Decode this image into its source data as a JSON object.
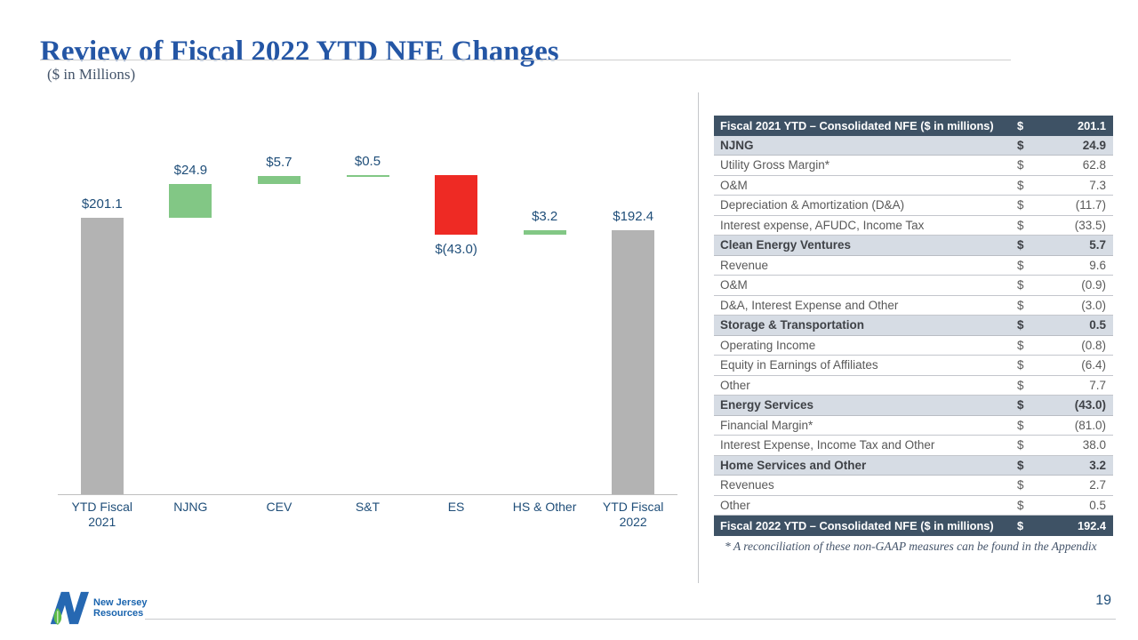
{
  "slide": {
    "title": "Review of Fiscal 2022 YTD NFE Changes",
    "subtitle": "($ in Millions)",
    "page_number": "19",
    "footnote": "* A reconciliation of these non-GAAP measures can be found in the Appendix",
    "logo": {
      "line1": "New Jersey",
      "line2": "Resources"
    }
  },
  "chart_data": {
    "type": "bar",
    "subtype": "waterfall",
    "categories": [
      "YTD Fiscal 2021",
      "NJNG",
      "CEV",
      "S&T",
      "ES",
      "HS & Other",
      "YTD Fiscal 2022"
    ],
    "steps": [
      {
        "category": "YTD Fiscal 2021",
        "value": 201.1,
        "kind": "total",
        "label": "$201.1"
      },
      {
        "category": "NJNG",
        "value": 24.9,
        "kind": "increase",
        "label": "$24.9"
      },
      {
        "category": "CEV",
        "value": 5.7,
        "kind": "increase",
        "label": "$5.7"
      },
      {
        "category": "S&T",
        "value": 0.5,
        "kind": "increase",
        "label": "$0.5"
      },
      {
        "category": "ES",
        "value": -43.0,
        "kind": "decrease",
        "label": "$(43.0)"
      },
      {
        "category": "HS & Other",
        "value": 3.2,
        "kind": "increase",
        "label": "$3.2"
      },
      {
        "category": "YTD Fiscal 2022",
        "value": 192.4,
        "kind": "total",
        "label": "$192.4"
      }
    ],
    "ylim": [
      0,
      235
    ],
    "grid": false,
    "legend": "none",
    "colors": {
      "total": "#B3B3B3",
      "increase": "#82C785",
      "decrease": "#EE2A24",
      "label": "#1F4E79",
      "axis": "#BFBFBF"
    }
  },
  "table": {
    "rows": [
      {
        "style": "header",
        "label": "Fiscal 2021 YTD – Consolidated NFE ($ in millions)",
        "currency": "$",
        "value": "201.1"
      },
      {
        "style": "section",
        "label": "NJNG",
        "currency": "$",
        "value": "24.9"
      },
      {
        "style": "item",
        "label": "Utility Gross Margin*",
        "currency": "$",
        "value": "62.8"
      },
      {
        "style": "item",
        "label": "O&M",
        "currency": "$",
        "value": "7.3"
      },
      {
        "style": "item",
        "label": "Depreciation & Amortization (D&A)",
        "currency": "$",
        "value": "(11.7)"
      },
      {
        "style": "item",
        "label": "Interest expense, AFUDC, Income Tax",
        "currency": "$",
        "value": "(33.5)"
      },
      {
        "style": "section",
        "label": "Clean Energy Ventures",
        "currency": "$",
        "value": "5.7"
      },
      {
        "style": "item",
        "label": "Revenue",
        "currency": "$",
        "value": "9.6"
      },
      {
        "style": "item",
        "label": "O&M",
        "currency": "$",
        "value": "(0.9)"
      },
      {
        "style": "item",
        "label": "D&A, Interest Expense and Other",
        "currency": "$",
        "value": "(3.0)"
      },
      {
        "style": "section",
        "label": "Storage & Transportation",
        "currency": "$",
        "value": "0.5"
      },
      {
        "style": "item",
        "label": "Operating Income",
        "currency": "$",
        "value": "(0.8)"
      },
      {
        "style": "item",
        "label": "Equity in Earnings of Affiliates",
        "currency": "$",
        "value": "(6.4)"
      },
      {
        "style": "item",
        "label": "Other",
        "currency": "$",
        "value": "7.7"
      },
      {
        "style": "section",
        "label": "Energy Services",
        "currency": "$",
        "value": "(43.0)"
      },
      {
        "style": "item",
        "label": "Financial Margin*",
        "currency": "$",
        "value": "(81.0)"
      },
      {
        "style": "item",
        "label": "Interest Expense, Income Tax and Other",
        "currency": "$",
        "value": "38.0"
      },
      {
        "style": "section",
        "label": "Home Services and Other",
        "currency": "$",
        "value": "3.2"
      },
      {
        "style": "item",
        "label": "Revenues",
        "currency": "$",
        "value": "2.7"
      },
      {
        "style": "item",
        "label": "Other",
        "currency": "$",
        "value": "0.5"
      },
      {
        "style": "footer",
        "label": "Fiscal 2022 YTD – Consolidated NFE ($ in millions)",
        "currency": "$",
        "value": "192.4"
      }
    ]
  },
  "colors": {
    "title_blue": "#2456A5",
    "chart_label_navy": "#1F4E79",
    "table_header_bg": "#3E5265",
    "table_section_bg": "#D6DCE4",
    "bar_gray": "#B3B3B3",
    "bar_green": "#82C785",
    "bar_red": "#EE2A24",
    "logo_blue": "#2668B2",
    "logo_leaf_green": "#5DBB46"
  }
}
